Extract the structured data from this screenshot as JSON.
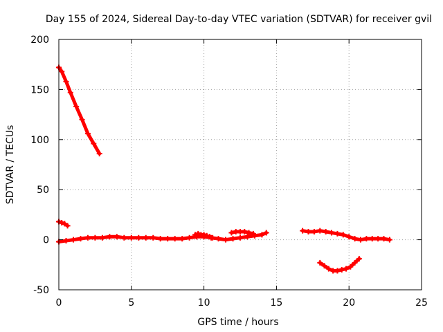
{
  "chart_data": {
    "type": "scatter",
    "title": "Day 155 of 2024, Sidereal Day-to-day VTEC variation (SDTVAR) for receiver gvil",
    "xlabel": "GPS time / hours",
    "ylabel": "SDTVAR / TECUs",
    "xlim": [
      0,
      25
    ],
    "ylim": [
      -50,
      200
    ],
    "xticks": [
      "0",
      "5",
      "10",
      "15",
      "20",
      "25"
    ],
    "yticks": [
      "-50",
      "0",
      "50",
      "100",
      "150",
      "200"
    ],
    "grid": true,
    "legend": "none",
    "marker_color": "#ff0000",
    "series": [
      {
        "name": "descending",
        "x": [
          0.0,
          0.2,
          0.5,
          0.8,
          1.2,
          1.6,
          2.0,
          2.4,
          2.8
        ],
        "y": [
          172,
          168,
          158,
          147,
          133,
          120,
          106,
          96,
          86
        ]
      },
      {
        "name": "small-segment",
        "x": [
          0.0,
          0.2,
          0.4,
          0.6
        ],
        "y": [
          18,
          17,
          16,
          14
        ]
      },
      {
        "name": "baseline",
        "x": [
          0.0,
          0.5,
          1.0,
          1.5,
          2.0,
          2.5,
          3.0,
          3.5,
          4.0,
          4.5,
          5.0,
          5.5,
          6.0,
          6.5,
          7.0,
          7.5,
          8.0,
          8.5,
          9.0,
          9.5,
          10.0,
          10.5,
          11.0,
          11.5,
          12.0,
          12.5,
          13.0,
          13.5,
          14.0,
          14.3
        ],
        "y": [
          -2,
          -1,
          0,
          1,
          2,
          2,
          2,
          3,
          3,
          2,
          2,
          2,
          2,
          2,
          1,
          1,
          1,
          1,
          2,
          3,
          3,
          2,
          1,
          0,
          1,
          2,
          3,
          4,
          5,
          7
        ]
      },
      {
        "name": "bump-9-10",
        "x": [
          9.4,
          9.6,
          9.8,
          10.0,
          10.2,
          10.4,
          10.6
        ],
        "y": [
          5,
          6,
          5,
          5,
          4,
          3,
          2
        ]
      },
      {
        "name": "bump-12-14",
        "x": [
          11.9,
          12.2,
          12.5,
          12.8,
          13.1,
          13.4
        ],
        "y": [
          7,
          8,
          8,
          8,
          7,
          6
        ]
      },
      {
        "name": "right-segment",
        "x": [
          16.8,
          17.2,
          17.6,
          18.0,
          18.4,
          18.8,
          19.2,
          19.6,
          20.0,
          20.4,
          20.8,
          21.2,
          21.6,
          22.0,
          22.4,
          22.8
        ],
        "y": [
          9,
          8,
          8,
          9,
          8,
          7,
          6,
          5,
          3,
          1,
          0,
          1,
          1,
          1,
          1,
          0
        ]
      },
      {
        "name": "negative-arc",
        "x": [
          18.0,
          18.3,
          18.6,
          18.9,
          19.2,
          19.5,
          19.8,
          20.1,
          20.4,
          20.7
        ],
        "y": [
          -23,
          -26,
          -29,
          -31,
          -31,
          -30,
          -29,
          -27,
          -23,
          -19
        ]
      }
    ]
  }
}
